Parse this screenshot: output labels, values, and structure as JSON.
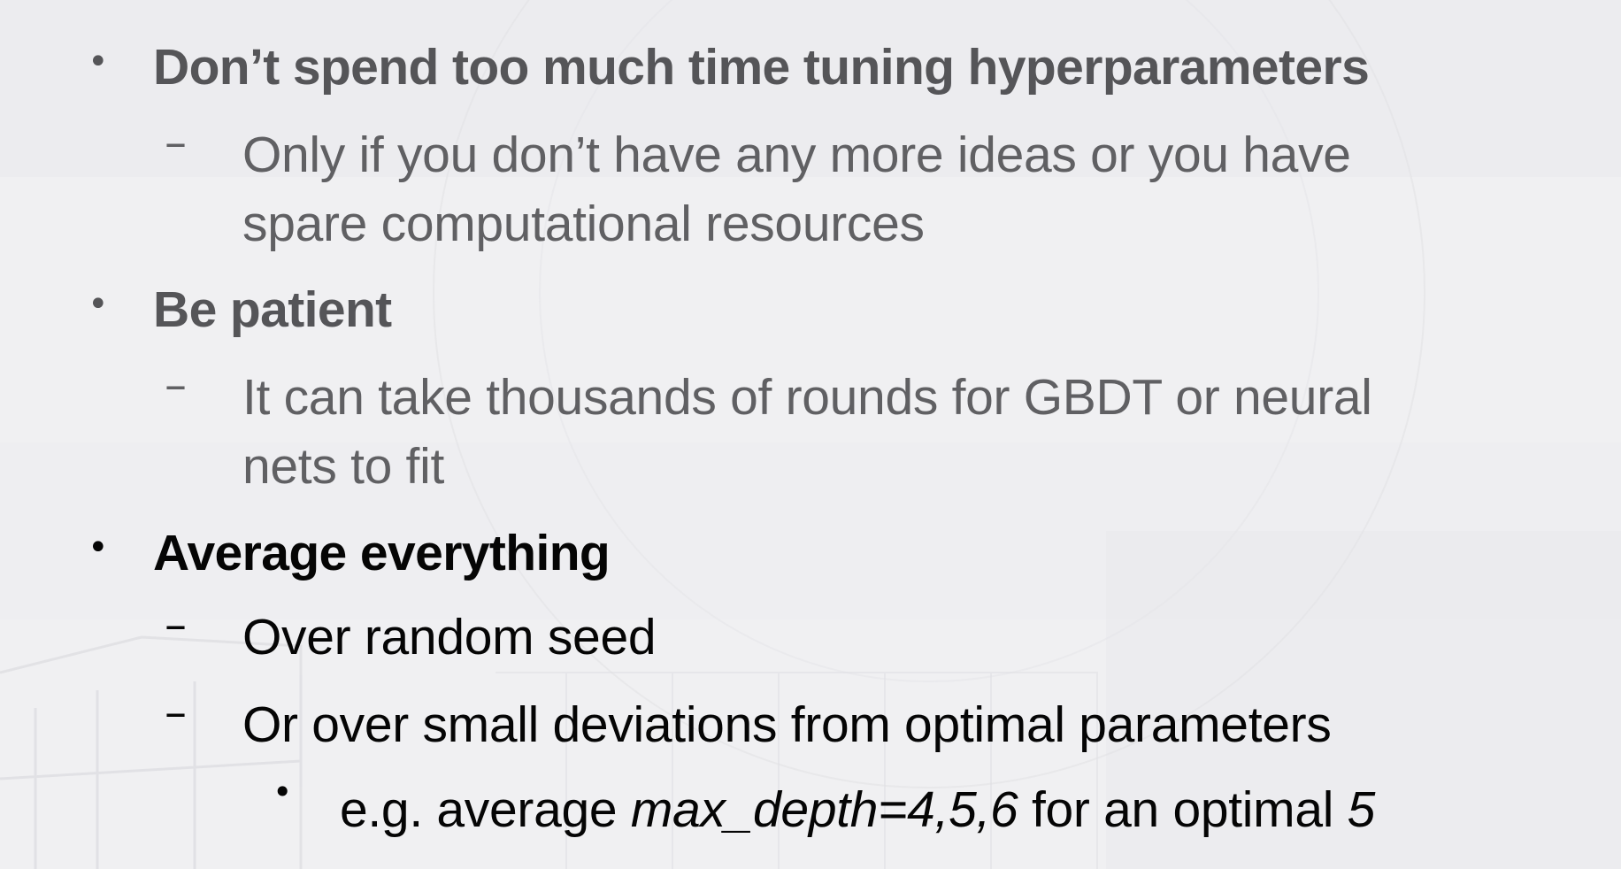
{
  "slide": {
    "bullets": [
      {
        "text": "Don’t spend too much time tuning hyperparameters",
        "subs": [
          {
            "line1": "Only if you don’t have any more ideas or you have",
            "line2": "spare computational resources"
          }
        ]
      },
      {
        "text": "Be patient",
        "subs": [
          {
            "line1": "It can take thousands of rounds for GBDT or neural",
            "line2": "nets to fit"
          }
        ]
      },
      {
        "text": "Average everything",
        "subs": [
          {
            "line1": "Over random seed"
          },
          {
            "line1": "Or over small deviations from optimal parameters"
          }
        ],
        "subsub": {
          "prefix": "e.g. average ",
          "param": "max_depth=4,5,6",
          "middle": " for an optimal ",
          "value": "5"
        }
      }
    ],
    "markers": {
      "bullet": "•",
      "dash": "–"
    }
  },
  "colors": {
    "faded_text": "#555558",
    "active_text": "#050505",
    "background": "#f1f1f3"
  }
}
